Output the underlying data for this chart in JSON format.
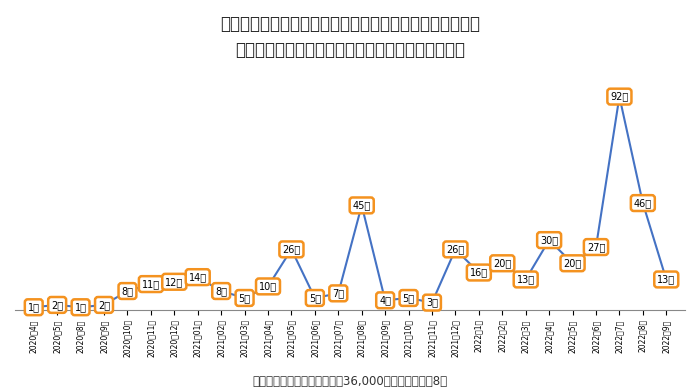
{
  "title_line1": "新型コロナ感染によるアルコール検知器の消毒依頼件数と",
  "title_line2": "第２波、第３波、第４波、第５波、第６波、第７波",
  "footnote": "母数：当社検知器の設置先約36,000事業所・契約数8万",
  "x_labels": [
    "2020年4月",
    "2020年5月",
    "2020年8月",
    "2020年9月",
    "2020年10月",
    "2020年11月",
    "2020年12月",
    "2021年01月",
    "2021年02月",
    "2021年03月",
    "2021年04月",
    "2021年05月",
    "2021年06月",
    "2021年07月",
    "2021年08月",
    "2021年09月",
    "2021年10月",
    "2021年11月",
    "2021年12月",
    "2022年1月",
    "2022年2月",
    "2022年3月",
    "2022年4月",
    "2022年5月",
    "2022年6月",
    "2022年7月",
    "2022年8月",
    "2022年9月"
  ],
  "values": [
    1,
    2,
    1,
    2,
    8,
    11,
    12,
    14,
    8,
    5,
    10,
    26,
    5,
    7,
    45,
    4,
    5,
    3,
    26,
    16,
    20,
    13,
    30,
    20,
    27,
    92,
    46,
    13
  ],
  "line_color": "#4472C4",
  "marker_face_color": "#FFFFFF",
  "marker_edge_color": "#F4921F",
  "label_text_color": "#000000",
  "background_color": "#FFFFFF",
  "ylim": [
    0,
    105
  ],
  "title_fontsize": 12,
  "label_fontsize": 7,
  "footnote_fontsize": 8.5,
  "tick_fontsize": 5.5
}
